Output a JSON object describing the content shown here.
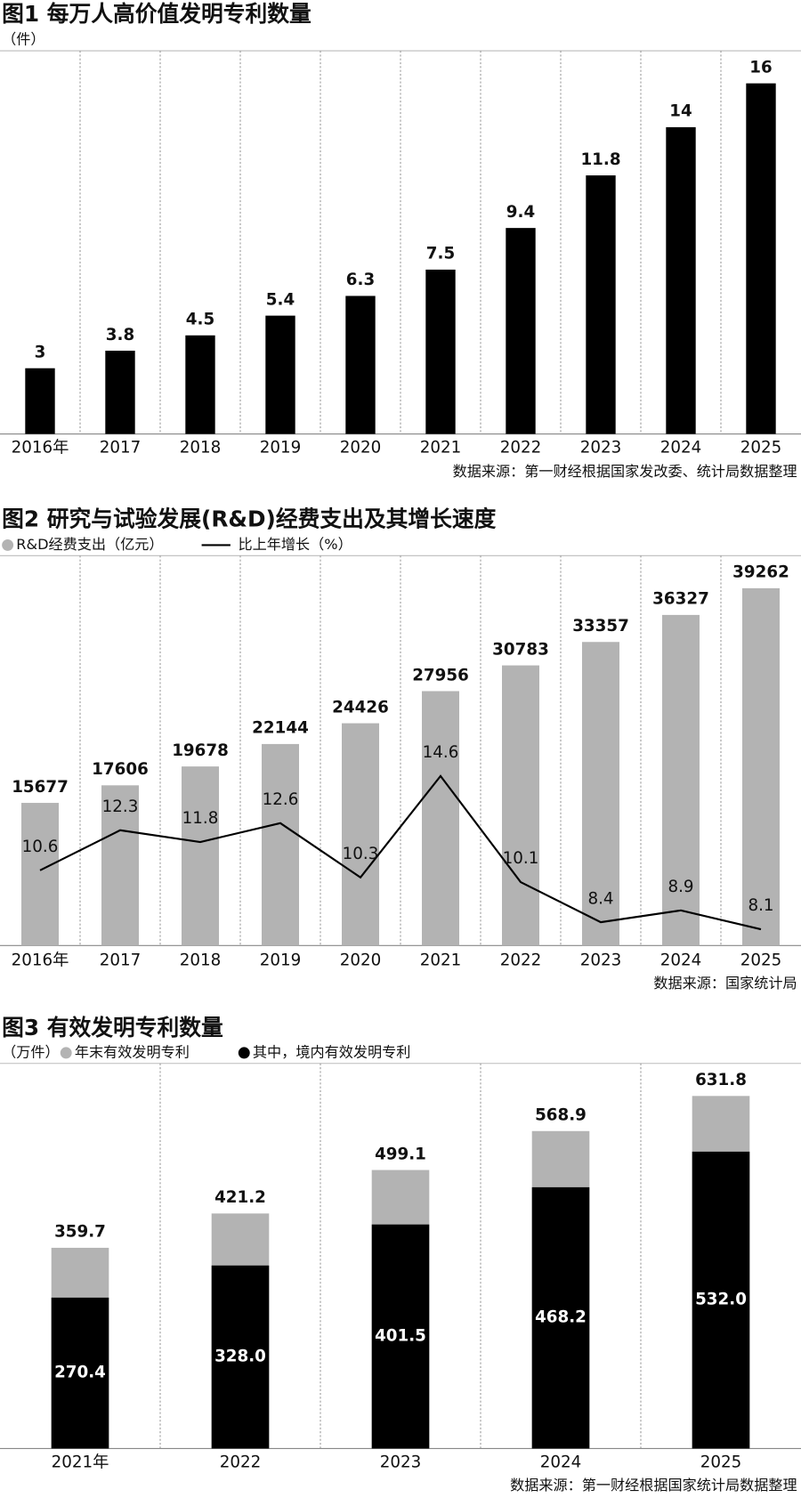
{
  "chart_data": [
    {
      "type": "bar",
      "title": "图1 每万人高价值发明专利数量",
      "unit": "（件）",
      "categories": [
        "2016年",
        "2017",
        "2018",
        "2019",
        "2020",
        "2021",
        "2022",
        "2023",
        "2024",
        "2025"
      ],
      "values": [
        3,
        3.8,
        4.5,
        5.4,
        6.3,
        7.5,
        9.4,
        11.8,
        14,
        16
      ],
      "color": "#000000",
      "source": "数据来源：第一财经根据国家发改委、统计局数据整理"
    },
    {
      "type": "bar-line",
      "title": "图2 研究与试验发展(R&D)经费支出及其增长速度",
      "categories": [
        "2016年",
        "2017",
        "2018",
        "2019",
        "2020",
        "2021",
        "2022",
        "2023",
        "2024",
        "2025"
      ],
      "series": [
        {
          "name": "R&D经费支出（亿元）",
          "color": "#b3b3b3",
          "type": "bar",
          "values": [
            15677,
            17606,
            19678,
            22144,
            24426,
            27956,
            30783,
            33357,
            36327,
            39262
          ]
        },
        {
          "name": "比上年增长（%）",
          "color": "#000000",
          "type": "line",
          "axis": "y2",
          "values": [
            10.6,
            12.3,
            11.8,
            12.6,
            10.3,
            14.6,
            10.1,
            8.4,
            8.9,
            8.1
          ]
        }
      ],
      "source": "数据来源：国家统计局"
    },
    {
      "type": "overlap-bar",
      "title": "图3 有效发明专利数量",
      "unit": "（万件）",
      "categories": [
        "2021年",
        "2022",
        "2023",
        "2024",
        "2025"
      ],
      "series": [
        {
          "name": "年末有效发明专利",
          "color": "#b3b3b3",
          "values": [
            359.7,
            421.2,
            499.1,
            568.9,
            631.8
          ]
        },
        {
          "name": "其中，境内有效发明专利",
          "color": "#000000",
          "values": [
            270.4,
            328,
            401.5,
            468.2,
            532
          ],
          "value_labels": [
            "270.4",
            "328.0",
            "401.5",
            "468.2",
            "532.0"
          ]
        }
      ],
      "source": "数据来源：第一财经根据国家统计局数据整理"
    }
  ]
}
